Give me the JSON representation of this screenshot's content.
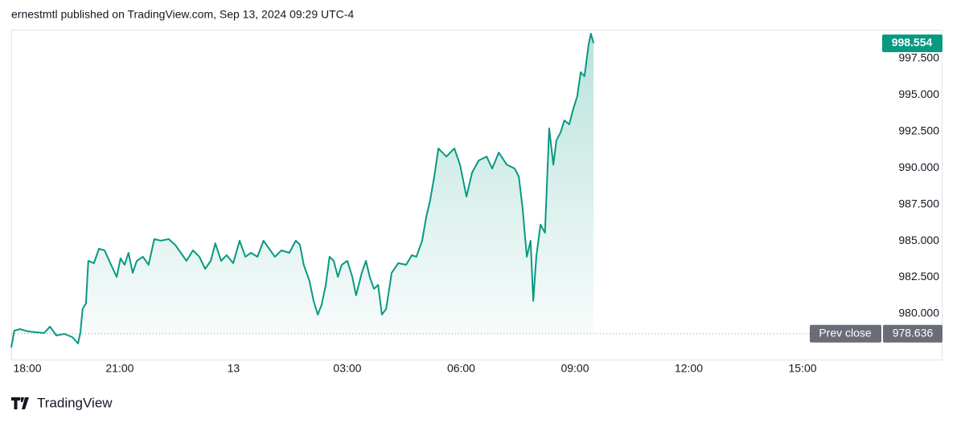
{
  "header": {
    "title": "ernestmtl published on TradingView.com, Sep 13, 2024 09:29 UTC-4"
  },
  "chart_data": {
    "type": "line",
    "color": "#089981",
    "x": [
      18.14,
      18.22,
      18.37,
      18.58,
      18.8,
      19.01,
      19.16,
      19.33,
      19.54,
      19.75,
      19.9,
      19.96,
      20.02,
      20.11,
      20.17,
      20.32,
      20.45,
      20.6,
      20.77,
      20.92,
      21.02,
      21.13,
      21.23,
      21.34,
      21.45,
      21.61,
      21.76,
      21.91,
      22.08,
      22.29,
      22.46,
      22.61,
      22.76,
      22.93,
      23.1,
      23.25,
      23.4,
      23.52,
      23.67,
      23.82,
      23.99,
      24.16,
      24.31,
      24.46,
      24.63,
      24.79,
      24.94,
      25.09,
      25.26,
      25.47,
      25.64,
      25.75,
      25.85,
      26.0,
      26.11,
      26.22,
      26.32,
      26.43,
      26.53,
      26.64,
      26.75,
      26.85,
      27.0,
      27.13,
      27.23,
      27.38,
      27.49,
      27.59,
      27.7,
      27.81,
      27.91,
      28.02,
      28.17,
      28.34,
      28.55,
      28.7,
      28.82,
      28.97,
      29.08,
      29.18,
      29.29,
      29.4,
      29.61,
      29.82,
      29.97,
      30.14,
      30.29,
      30.46,
      30.67,
      30.82,
      30.99,
      31.2,
      31.41,
      31.52,
      31.62,
      31.73,
      31.83,
      31.9,
      31.98,
      32.09,
      32.21,
      32.32,
      32.43,
      32.51,
      32.62,
      32.72,
      32.85,
      32.96,
      33.06,
      33.15,
      33.25,
      33.36,
      33.42,
      33.49
    ],
    "values": [
      977.69,
      978.84,
      978.95,
      978.79,
      978.73,
      978.68,
      979.12,
      978.51,
      978.62,
      978.4,
      977.96,
      978.68,
      980.33,
      980.72,
      983.63,
      983.47,
      984.46,
      984.35,
      983.36,
      982.53,
      983.8,
      983.36,
      984.18,
      982.81,
      983.63,
      983.91,
      983.36,
      985.12,
      985.01,
      985.12,
      984.73,
      984.18,
      983.63,
      984.35,
      983.91,
      983.08,
      983.63,
      984.84,
      983.63,
      984.02,
      983.47,
      985.01,
      983.91,
      984.18,
      983.91,
      985.01,
      984.46,
      983.91,
      984.35,
      984.18,
      985.01,
      984.73,
      983.36,
      982.26,
      980.88,
      979.95,
      980.61,
      981.98,
      983.91,
      983.63,
      982.53,
      983.36,
      983.63,
      982.53,
      981.27,
      982.81,
      983.63,
      982.53,
      981.71,
      981.98,
      979.95,
      980.33,
      982.81,
      983.47,
      983.36,
      984.02,
      983.91,
      985.01,
      986.66,
      987.76,
      989.41,
      991.34,
      990.78,
      991.34,
      990.23,
      988.04,
      989.69,
      990.51,
      990.78,
      989.96,
      991.06,
      990.23,
      989.96,
      989.41,
      987.21,
      983.91,
      985.01,
      980.88,
      983.91,
      986.11,
      985.56,
      992.71,
      990.23,
      991.89,
      992.44,
      993.26,
      992.99,
      994.09,
      994.91,
      996.57,
      996.29,
      998.49,
      999.21,
      998.554
    ],
    "xlim": [
      18.14,
      40.95
    ],
    "xticks": [
      {
        "value": 18,
        "label": "18:00"
      },
      {
        "value": 21,
        "label": "21:00"
      },
      {
        "value": 24,
        "label": "13"
      },
      {
        "value": 27,
        "label": "03:00"
      },
      {
        "value": 30,
        "label": "06:00"
      },
      {
        "value": 33,
        "label": "09:00"
      },
      {
        "value": 36,
        "label": "12:00"
      },
      {
        "value": 39,
        "label": "15:00"
      }
    ],
    "ylim": [
      976.86,
      999.48
    ],
    "yticks": [
      {
        "value": 980,
        "label": "980.000"
      },
      {
        "value": 982.5,
        "label": "982.500"
      },
      {
        "value": 985,
        "label": "985.000"
      },
      {
        "value": 987.5,
        "label": "987.500"
      },
      {
        "value": 990,
        "label": "990.000"
      },
      {
        "value": 992.5,
        "label": "992.500"
      },
      {
        "value": 995,
        "label": "995.000"
      },
      {
        "value": 997.5,
        "label": "997.500"
      }
    ],
    "prev_close": {
      "label": "Prev close",
      "value": 978.636
    }
  },
  "footer": {
    "brand": "TradingView"
  }
}
